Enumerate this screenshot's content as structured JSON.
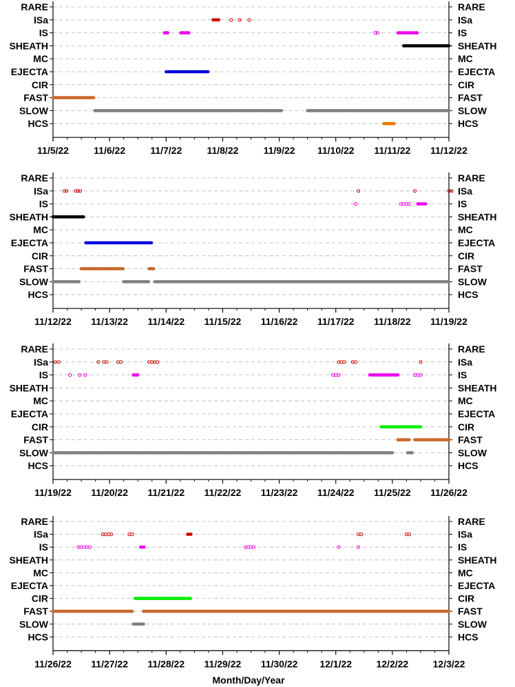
{
  "chart_data": {
    "type": "scatter",
    "xlabel": "Month/Day/Year",
    "categories": [
      "RARE",
      "ISa",
      "IS",
      "SHEATH",
      "MC",
      "EJECTA",
      "CIR",
      "FAST",
      "SLOW",
      "HCS"
    ],
    "colors": {
      "ISa": "#cc0000",
      "IS": "#ee00ee",
      "SHEATH": "#000000",
      "EJECTA": "#0000dd",
      "CIR": "#00ee00",
      "FAST": "#c8682c",
      "SLOW": "#808080",
      "HCS": "#ee7700"
    },
    "panels": [
      {
        "xlim": [
          "11/5/22",
          "11/12/22"
        ],
        "ticks": [
          "11/5/22",
          "11/6/22",
          "11/7/22",
          "11/8/22",
          "11/9/22",
          "11/10/22",
          "11/11/22",
          "11/12/22"
        ],
        "series": [
          {
            "category": "ISa",
            "mode": "solid",
            "ranges": [
              [
                2.83,
                2.93
              ]
            ]
          },
          {
            "category": "ISa",
            "mode": "open",
            "points": [
              3.15,
              3.3,
              3.47
            ]
          },
          {
            "category": "IS",
            "mode": "solid",
            "ranges": [
              [
                1.97,
                2.04
              ],
              [
                2.26,
                2.4
              ],
              [
                6.1,
                6.45
              ]
            ]
          },
          {
            "category": "IS",
            "mode": "open",
            "points": [
              5.7,
              5.74
            ]
          },
          {
            "category": "SHEATH",
            "mode": "solid",
            "ranges": [
              [
                6.2,
                7.0
              ]
            ]
          },
          {
            "category": "EJECTA",
            "mode": "solid",
            "ranges": [
              [
                2.0,
                2.74
              ]
            ]
          },
          {
            "category": "FAST",
            "mode": "solid",
            "ranges": [
              [
                0.0,
                0.72
              ]
            ]
          },
          {
            "category": "SLOW",
            "mode": "solid",
            "ranges": [
              [
                0.74,
                4.05
              ],
              [
                4.5,
                7.0
              ]
            ]
          },
          {
            "category": "HCS",
            "mode": "solid",
            "ranges": [
              [
                5.85,
                6.04
              ]
            ]
          }
        ]
      },
      {
        "xlim": [
          "11/12/22",
          "11/19/22"
        ],
        "ticks": [
          "11/12/22",
          "11/13/22",
          "11/14/22",
          "11/15/22",
          "11/16/22",
          "11/17/22",
          "11/18/22",
          "11/19/22"
        ],
        "series": [
          {
            "category": "ISa",
            "mode": "open",
            "points": [
              0.2,
              0.24,
              0.4,
              0.44,
              0.48,
              5.4,
              6.4,
              7.0,
              7.05
            ]
          },
          {
            "category": "IS",
            "mode": "open",
            "points": [
              5.35,
              6.15,
              6.2,
              6.25,
              6.3
            ]
          },
          {
            "category": "IS",
            "mode": "solid",
            "ranges": [
              [
                6.45,
                6.6
              ]
            ]
          },
          {
            "category": "SHEATH",
            "mode": "solid",
            "ranges": [
              [
                0.0,
                0.55
              ]
            ]
          },
          {
            "category": "EJECTA",
            "mode": "solid",
            "ranges": [
              [
                0.58,
                1.75
              ]
            ]
          },
          {
            "category": "FAST",
            "mode": "solid",
            "ranges": [
              [
                0.5,
                1.25
              ],
              [
                1.7,
                1.78
              ]
            ]
          },
          {
            "category": "SLOW",
            "mode": "solid",
            "ranges": [
              [
                0.0,
                0.47
              ],
              [
                1.25,
                1.7
              ],
              [
                1.8,
                7.0
              ]
            ]
          }
        ]
      },
      {
        "xlim": [
          "11/19/22",
          "11/26/22"
        ],
        "ticks": [
          "11/19/22",
          "11/20/22",
          "11/21/22",
          "11/22/22",
          "11/23/22",
          "11/24/22",
          "11/25/22",
          "11/26/22"
        ],
        "series": [
          {
            "category": "ISa",
            "mode": "open",
            "points": [
              0.04,
              0.1,
              0.8,
              0.9,
              0.95,
              1.15,
              1.2,
              1.7,
              1.75,
              1.8,
              1.85,
              5.05,
              5.1,
              5.15,
              5.3,
              5.35,
              6.5
            ]
          },
          {
            "category": "IS",
            "mode": "open",
            "points": [
              0.3,
              0.47,
              0.57,
              4.95,
              5.0,
              5.05,
              6.4,
              6.45,
              6.5
            ]
          },
          {
            "category": "IS",
            "mode": "solid",
            "ranges": [
              [
                1.42,
                1.5
              ],
              [
                5.6,
                6.1
              ]
            ]
          },
          {
            "category": "CIR",
            "mode": "solid",
            "ranges": [
              [
                5.8,
                6.5
              ]
            ]
          },
          {
            "category": "FAST",
            "mode": "solid",
            "ranges": [
              [
                6.1,
                6.3
              ],
              [
                6.4,
                7.0
              ]
            ]
          },
          {
            "category": "SLOW",
            "mode": "solid",
            "ranges": [
              [
                0.0,
                6.0
              ],
              [
                6.27,
                6.35
              ]
            ]
          }
        ]
      },
      {
        "xlim": [
          "11/26/22",
          "12/3/22"
        ],
        "ticks": [
          "11/26/22",
          "11/27/22",
          "11/28/22",
          "11/29/22",
          "11/30/22",
          "12/1/22",
          "12/2/22",
          "12/3/22"
        ],
        "series": [
          {
            "category": "ISa",
            "mode": "open",
            "points": [
              0.88,
              0.93,
              0.98,
              1.03,
              1.35,
              1.4,
              5.4,
              5.45,
              6.25,
              6.3
            ]
          },
          {
            "category": "ISa",
            "mode": "solid",
            "ranges": [
              [
                2.38,
                2.45
              ]
            ]
          },
          {
            "category": "IS",
            "mode": "open",
            "points": [
              0.45,
              0.5,
              0.55,
              0.6,
              0.65,
              3.4,
              3.45,
              3.5,
              3.55,
              5.05,
              5.4
            ]
          },
          {
            "category": "IS",
            "mode": "solid",
            "ranges": [
              [
                1.55,
                1.62
              ]
            ]
          },
          {
            "category": "CIR",
            "mode": "solid",
            "ranges": [
              [
                1.45,
                2.43
              ]
            ]
          },
          {
            "category": "FAST",
            "mode": "solid",
            "ranges": [
              [
                0.0,
                1.4
              ],
              [
                1.6,
                7.0
              ]
            ]
          },
          {
            "category": "SLOW",
            "mode": "solid",
            "ranges": [
              [
                1.42,
                1.6
              ]
            ]
          }
        ]
      }
    ]
  }
}
